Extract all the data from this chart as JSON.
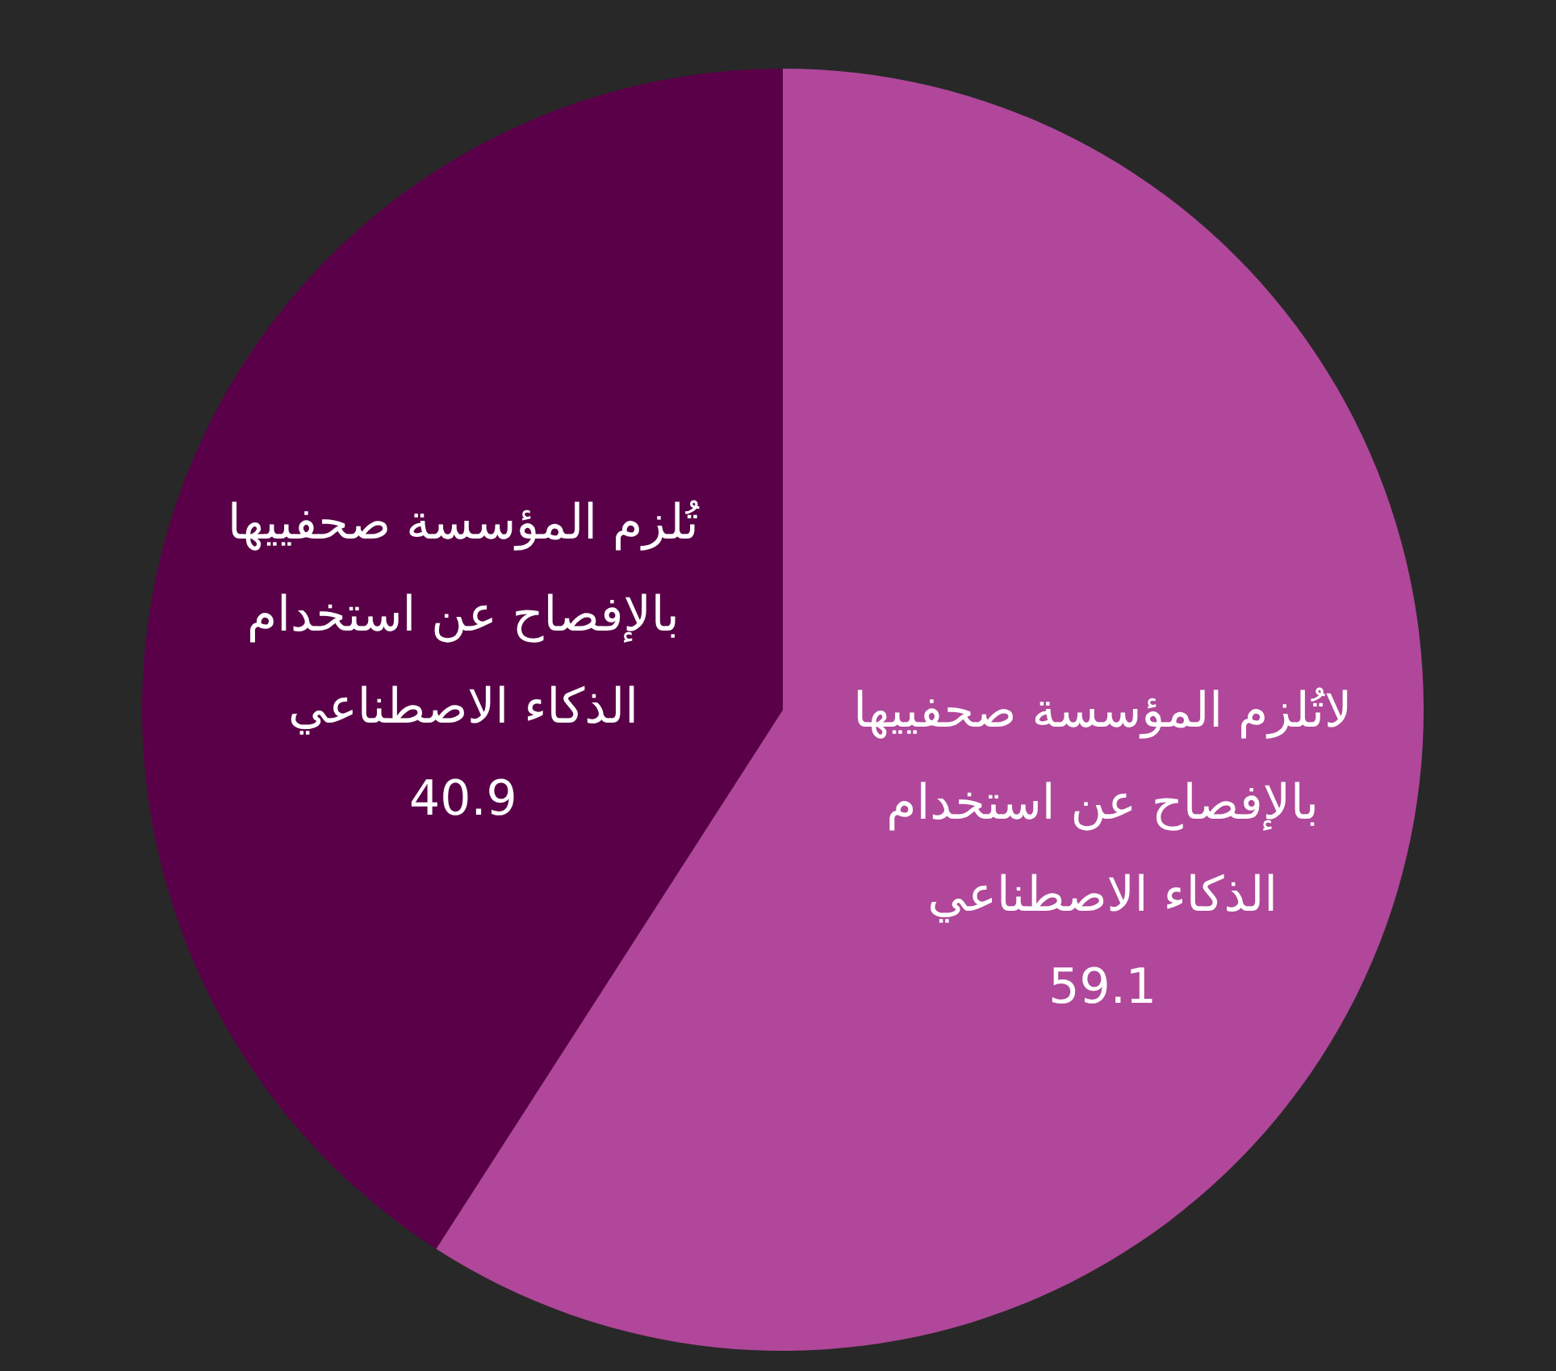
{
  "chart_data": {
    "type": "pie",
    "categories": [
      "لاتُلزم المؤسسة صحفييها بالإفصاح عن استخدام الذكاء الاصطناعي",
      "تُلزم المؤسسة صحفييها بالإفصاح عن استخدام الذكاء الاصطناعي"
    ],
    "values": [
      59.1,
      40.9
    ],
    "colors": [
      "#b0479a",
      "#5a0048"
    ],
    "data_labels": true
  }
}
